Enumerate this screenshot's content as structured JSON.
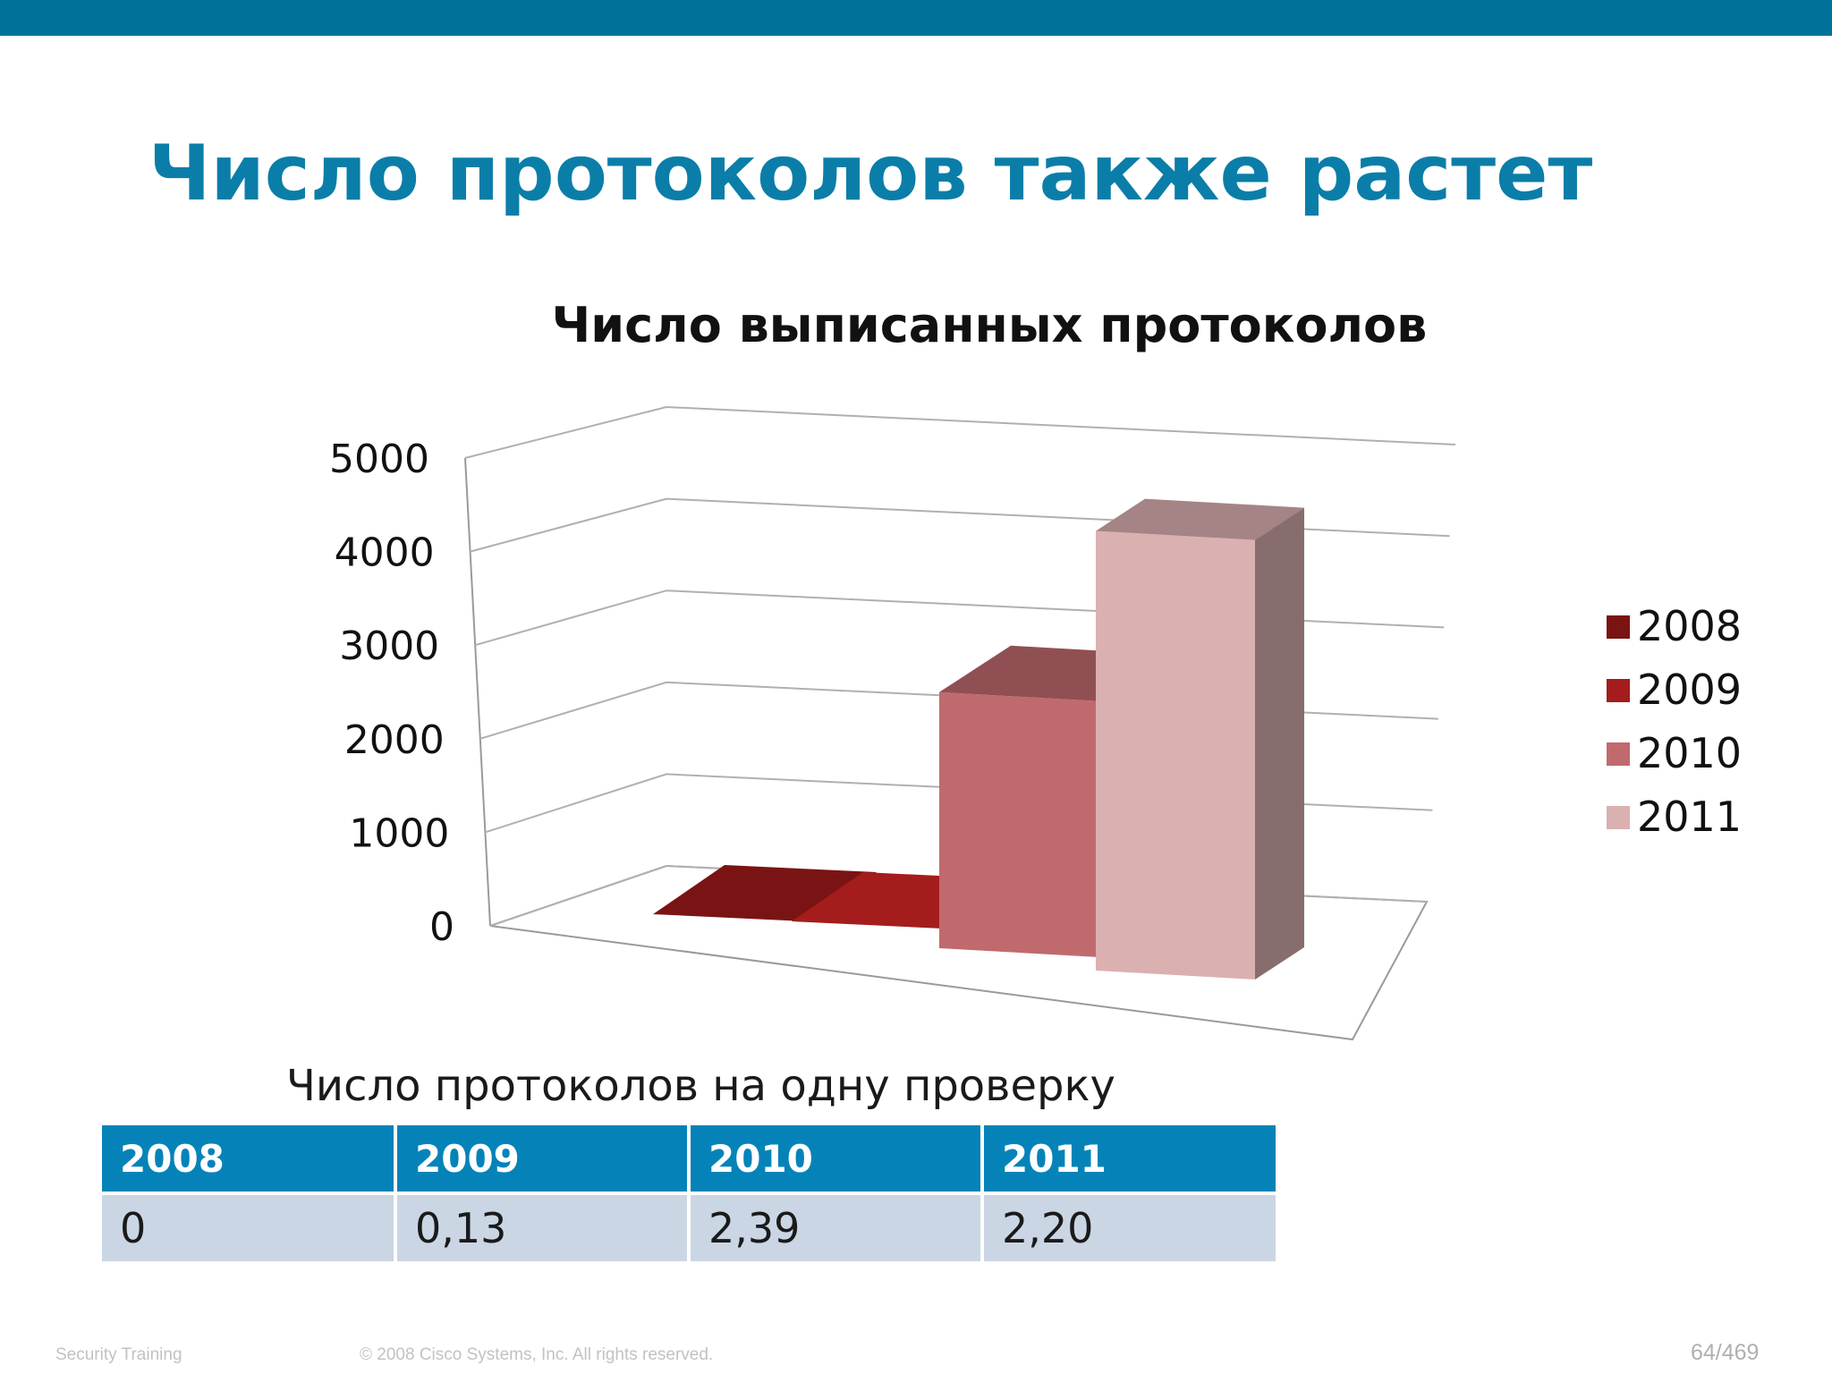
{
  "slide": {
    "title": "Число протоколов также растет",
    "accent_color": "#00729a"
  },
  "chart_data": {
    "type": "bar",
    "title": "Число выписанных протоколов",
    "categories": [
      "2008",
      "2009",
      "2010",
      "2011"
    ],
    "values": [
      10,
      70,
      2650,
      4550
    ],
    "ylim": [
      0,
      5000
    ],
    "yticks": [
      "0",
      "1000",
      "2000",
      "3000",
      "4000",
      "5000"
    ],
    "grid": true,
    "three_d": true,
    "legend_position": "right",
    "series": [
      {
        "name": "2008",
        "color": "#7a1414"
      },
      {
        "name": "2009",
        "color": "#a51c1c"
      },
      {
        "name": "2010",
        "color": "#c06a6e"
      },
      {
        "name": "2011",
        "color": "#dbb0b1"
      }
    ]
  },
  "table": {
    "caption": "Число протоколов на одну проверку",
    "headers": [
      "2008",
      "2009",
      "2010",
      "2011"
    ],
    "values": [
      "0",
      "0,13",
      "2,39",
      "2,20"
    ]
  },
  "footer": {
    "left": "Security Training",
    "center": "© 2008 Cisco Systems, Inc. All rights reserved.",
    "page": "64/469"
  }
}
